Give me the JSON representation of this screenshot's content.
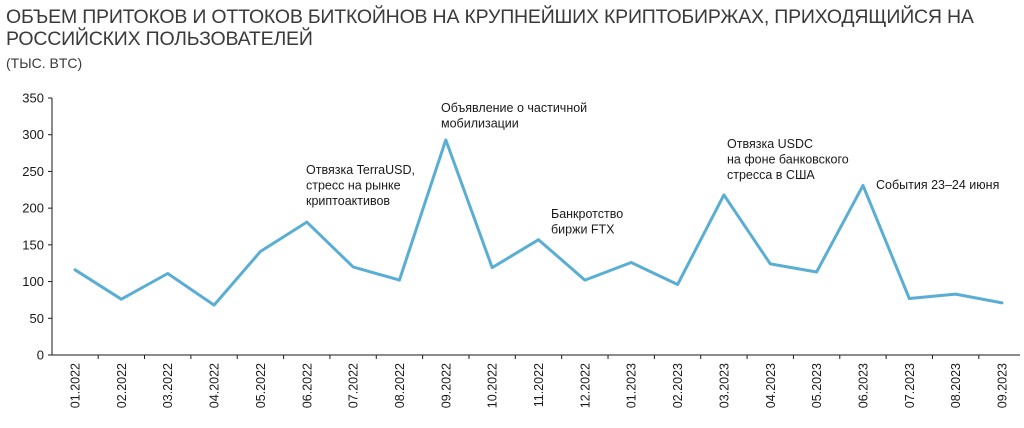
{
  "chart_data": {
    "type": "line",
    "title": "ОБЪЕМ ПРИТОКОВ И ОТТОКОВ БИТКОЙНОВ НА КРУПНЕЙШИХ КРИПТОБИРЖАХ, ПРИХОДЯЩИЙСЯ НА РОССИЙСКИХ ПОЛЬЗОВАТЕЛЕЙ",
    "subtitle": "(ТЫС. BTC)",
    "categories": [
      "01.2022",
      "02.2022",
      "03.2022",
      "04.2022",
      "05.2022",
      "06.2022",
      "07.2022",
      "08.2022",
      "09.2022",
      "10.2022",
      "11.2022",
      "12.2022",
      "01.2023",
      "02.2023",
      "03.2023",
      "04.2023",
      "05.2023",
      "06.2023",
      "07.2023",
      "08.2023",
      "09.2023"
    ],
    "series": [
      {
        "values": [
          116,
          76,
          111,
          68,
          141,
          181,
          120,
          102,
          293,
          119,
          157,
          102,
          126,
          96,
          218,
          124,
          113,
          231,
          77,
          83,
          71
        ]
      }
    ],
    "ylim": [
      0,
      350
    ],
    "yticks": [
      0,
      50,
      100,
      150,
      200,
      250,
      300,
      350
    ],
    "grid": false,
    "line_color": "#5aaed3",
    "annotations": [
      {
        "lines": [
          "Отвязка TerraUSD,",
          "стресс на рынке",
          "криптоактивов"
        ]
      },
      {
        "lines": [
          "Объявление о частичной",
          "мобилизации"
        ]
      },
      {
        "lines": [
          "Банкротство",
          "биржи FTX"
        ]
      },
      {
        "lines": [
          "Отвязка USDC",
          "на фоне банковского",
          "стресса в США"
        ]
      },
      {
        "lines": [
          "События 23–24 июня"
        ]
      }
    ]
  }
}
